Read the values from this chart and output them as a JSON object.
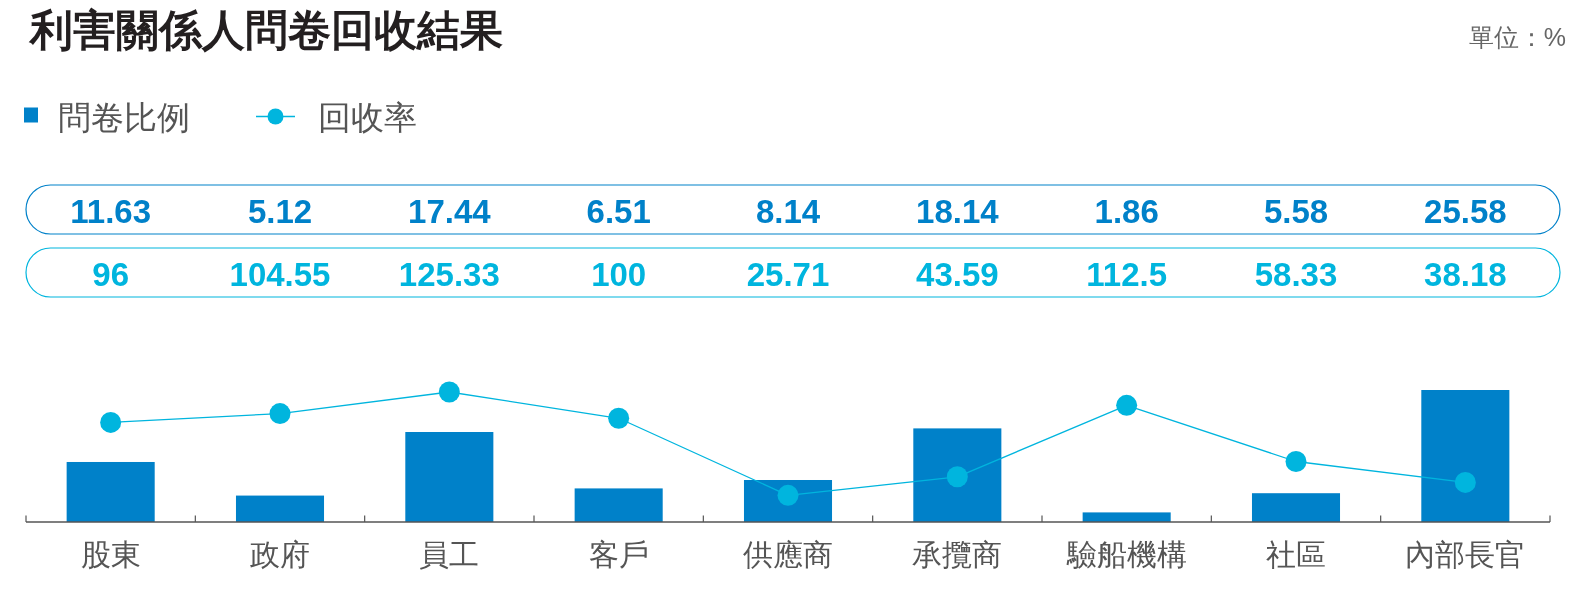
{
  "chart_data": {
    "type": "bar",
    "title": "利害關係人問卷回收結果",
    "annotations": [
      "單位：%"
    ],
    "categories": [
      "股東",
      "政府",
      "員工",
      "客戶",
      "供應商",
      "承攬商",
      "驗船機構",
      "社區",
      "內部長官"
    ],
    "series": [
      {
        "name": "問卷比例",
        "color": "#0081c9",
        "values": [
          11.63,
          5.12,
          17.44,
          6.51,
          8.14,
          18.14,
          1.86,
          5.58,
          25.58
        ]
      },
      {
        "name": "回收率",
        "type": "line",
        "axis": "y2",
        "color": "#00b5de",
        "values": [
          96,
          104.55,
          125.33,
          100,
          25.71,
          43.59,
          112.5,
          58.33,
          38.18
        ]
      }
    ],
    "data_labels": true,
    "legend": "top left",
    "marker": "circle",
    "line_style": "solid"
  }
}
